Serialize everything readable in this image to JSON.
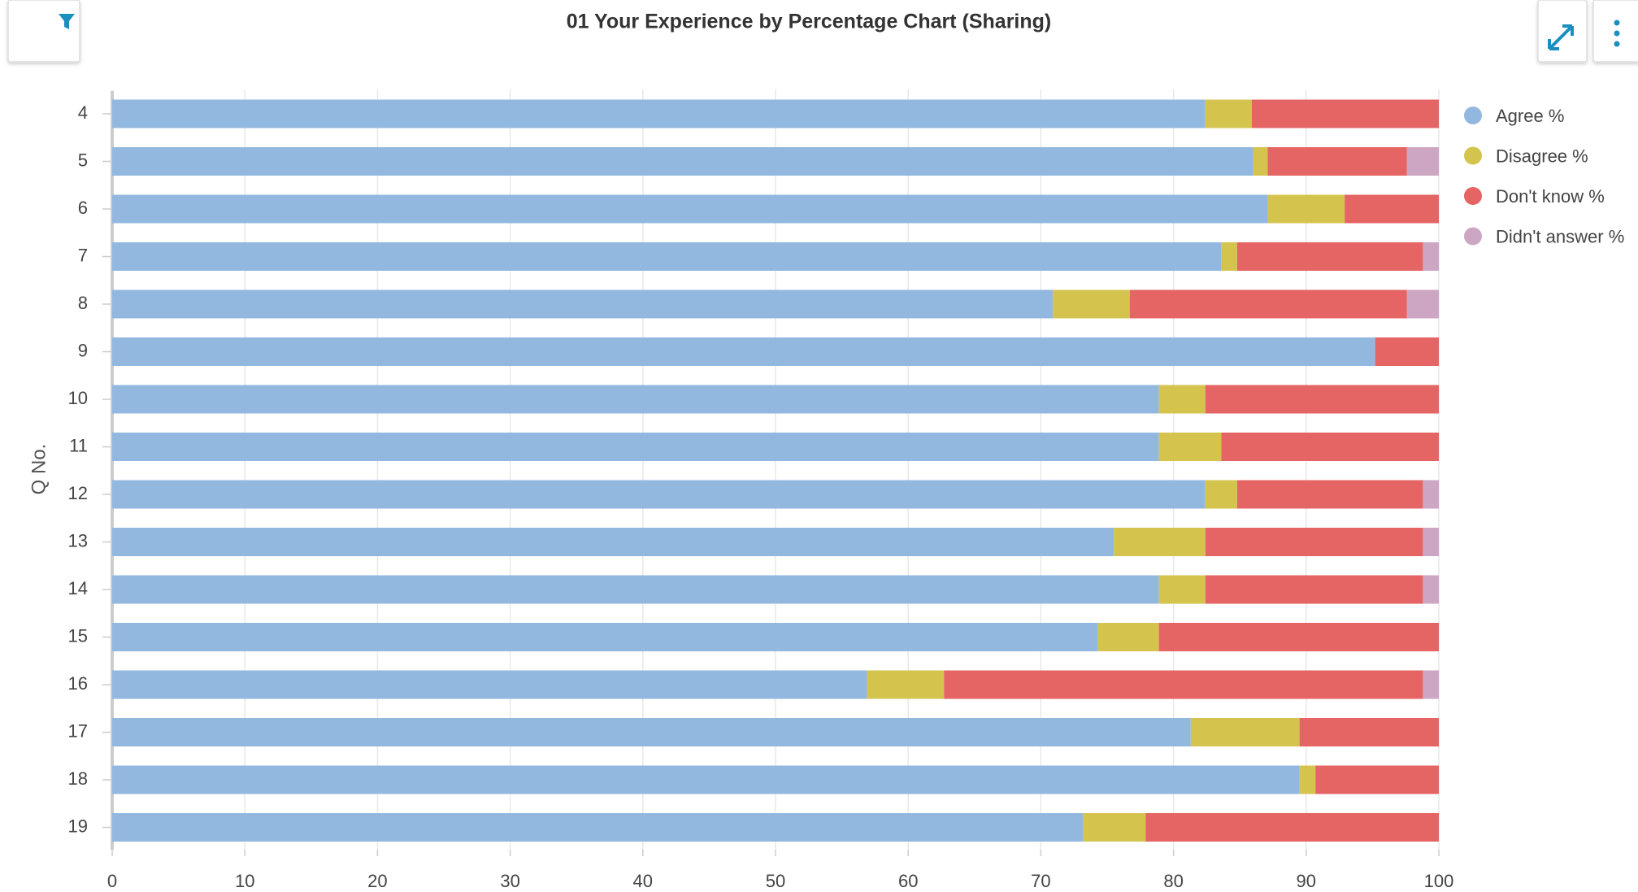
{
  "chart_data": {
    "type": "stacked_bar_horizontal",
    "title": "01 Your Experience by Percentage Chart (Sharing)",
    "y_label": "Q No.",
    "categories": [
      "4",
      "5",
      "6",
      "7",
      "8",
      "9",
      "10",
      "11",
      "12",
      "13",
      "14",
      "15",
      "16",
      "17",
      "18",
      "19"
    ],
    "series": [
      {
        "name": "Agree %",
        "color": "#93b8e0",
        "values": [
          82.4,
          86.0,
          87.1,
          83.6,
          70.9,
          95.2,
          78.9,
          78.9,
          82.4,
          75.5,
          78.9,
          74.3,
          56.9,
          81.3,
          89.5,
          73.2
        ]
      },
      {
        "name": "Disagree %",
        "color": "#d4c44e",
        "values": [
          3.5,
          1.1,
          5.8,
          1.2,
          5.8,
          0,
          3.5,
          4.7,
          2.4,
          6.9,
          3.5,
          4.6,
          5.8,
          8.2,
          1.2,
          4.7
        ]
      },
      {
        "name": "Don't know %",
        "color": "#e56464",
        "values": [
          14.1,
          10.5,
          7.1,
          14.0,
          20.9,
          4.8,
          17.6,
          16.4,
          14.0,
          16.4,
          16.4,
          21.1,
          36.1,
          10.5,
          9.3,
          22.1
        ]
      },
      {
        "name": "Didn't answer %",
        "color": "#cda6c3",
        "values": [
          0,
          2.4,
          0,
          1.2,
          2.4,
          0,
          0,
          0,
          1.2,
          1.2,
          1.2,
          0,
          1.2,
          0,
          0,
          0
        ]
      }
    ],
    "xlim": [
      0,
      100
    ],
    "xticks": [
      0,
      10,
      20,
      30,
      40,
      50,
      60,
      70,
      80,
      90,
      100
    ],
    "grid": true,
    "legend": "right"
  }
}
